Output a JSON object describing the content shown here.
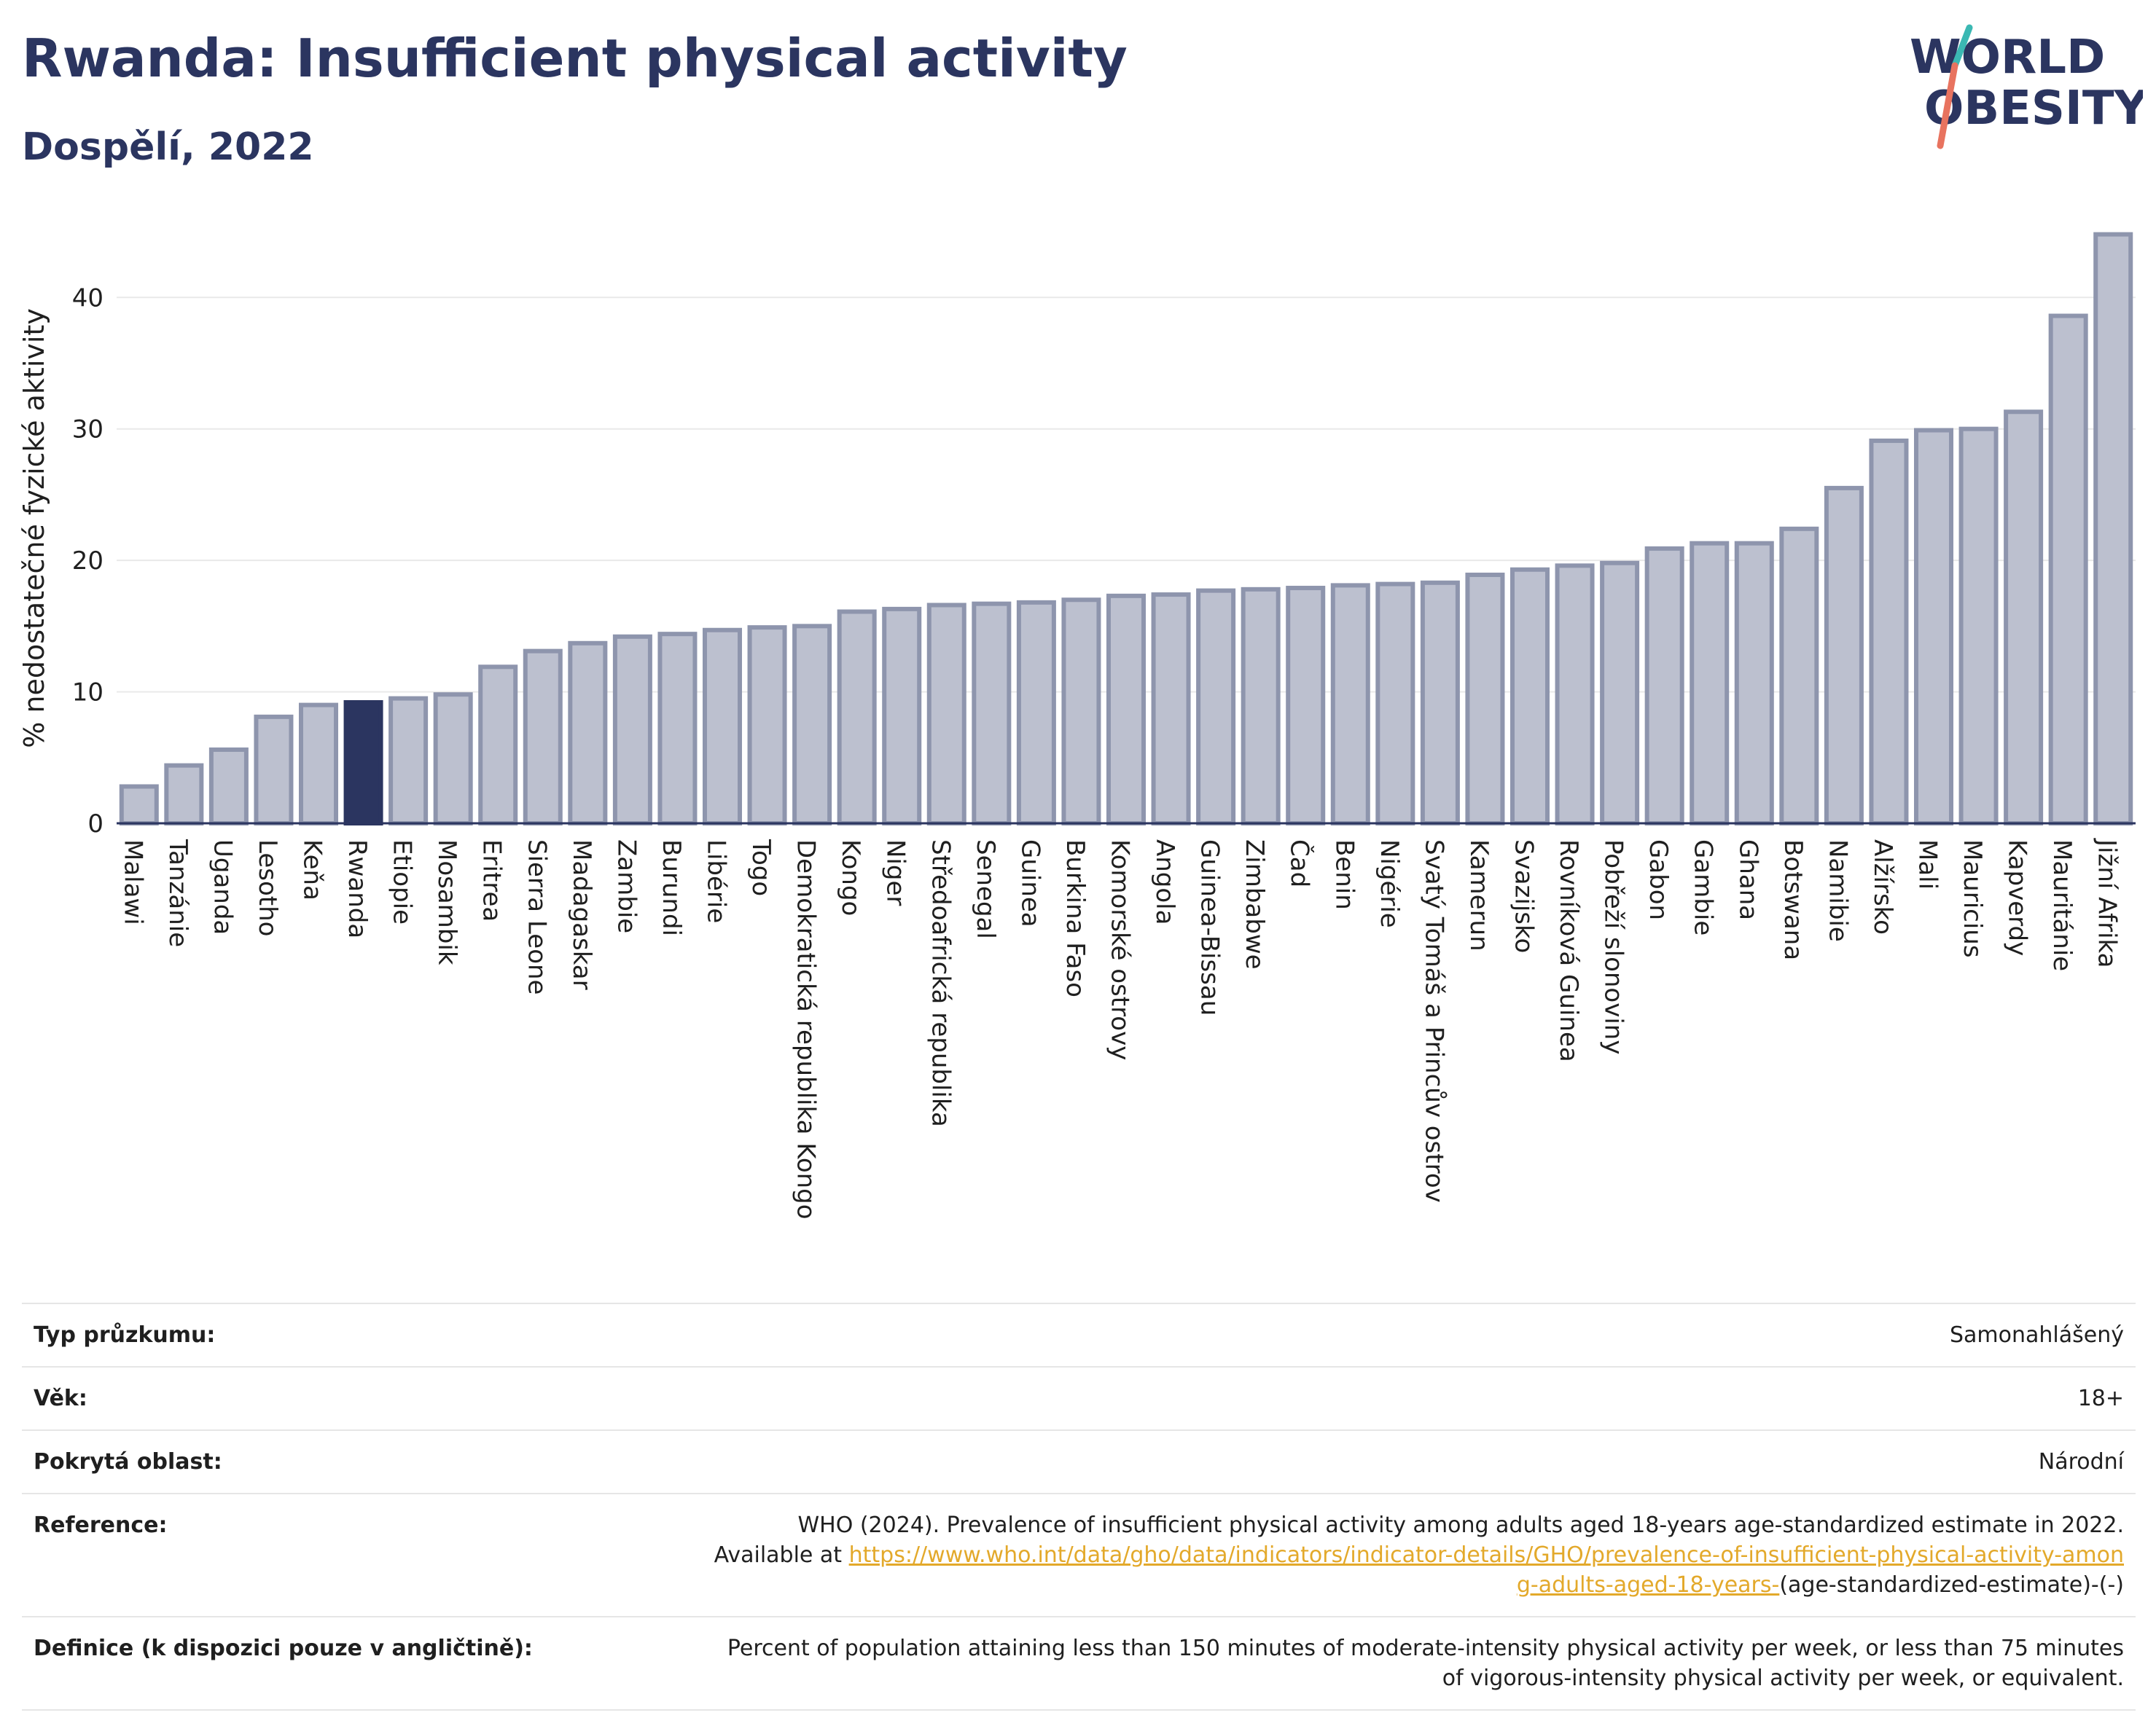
{
  "header": {
    "title": "Rwanda: Insufficient physical activity",
    "subtitle": "Dospělí, 2022"
  },
  "logo": {
    "line1": "WORLD",
    "line2": "OBESITY"
  },
  "colors": {
    "bar": "#bcc0cf",
    "bar_border": "#8e95ad",
    "highlight": "#2b3560",
    "title": "#2b3560",
    "grid": "#e9e9e9",
    "logo_slash_top": "#3bb8b3",
    "logo_slash_bottom": "#e8735f",
    "link": "#e3a92b"
  },
  "chart_data": {
    "type": "bar",
    "ylabel": "% nedostatečné fyzické aktivity",
    "xlabel": "",
    "ylim": [
      0,
      46
    ],
    "yticks": [
      0,
      10,
      20,
      30,
      40
    ],
    "grid": true,
    "highlight": "Rwanda",
    "categories": [
      "Malawi",
      "Tanzánie",
      "Uganda",
      "Lesotho",
      "Keňa",
      "Rwanda",
      "Etiopie",
      "Mosambik",
      "Eritrea",
      "Sierra Leone",
      "Madagaskar",
      "Zambie",
      "Burundi",
      "Libérie",
      "Togo",
      "Demokratická republika Kongo",
      "Kongo",
      "Niger",
      "Středoafrická republika",
      "Senegal",
      "Guinea",
      "Burkina Faso",
      "Komorské ostrovy",
      "Angola",
      "Guinea-Bissau",
      "Zimbabwe",
      "Čad",
      "Benin",
      "Nigérie",
      "Svatý Tomáš a Princův ostrov",
      "Kamerun",
      "Svazijsko",
      "Rovníková Guinea",
      "Pobřeží slonoviny",
      "Gabon",
      "Gambie",
      "Ghana",
      "Botswana",
      "Namibie",
      "Alžírsko",
      "Mali",
      "Mauricius",
      "Kapverdy",
      "Mauritánie",
      "Jižní Afrika"
    ],
    "values": [
      2.8,
      4.4,
      5.6,
      8.1,
      9.0,
      9.2,
      9.5,
      9.8,
      11.9,
      13.1,
      13.7,
      14.2,
      14.4,
      14.7,
      14.9,
      15.0,
      16.1,
      16.3,
      16.6,
      16.7,
      16.8,
      17.0,
      17.3,
      17.4,
      17.7,
      17.8,
      17.9,
      18.1,
      18.2,
      18.3,
      18.9,
      19.3,
      19.6,
      19.8,
      20.9,
      21.3,
      21.3,
      22.4,
      25.5,
      29.1,
      29.9,
      30.0,
      31.3,
      38.6,
      44.8
    ]
  },
  "info": {
    "survey_type": {
      "label": "Typ průzkumu:",
      "value": "Samonahlášený"
    },
    "age": {
      "label": "Věk:",
      "value": "18+"
    },
    "area": {
      "label": "Pokrytá oblast:",
      "value": "Národní"
    },
    "reference": {
      "label": "Reference:",
      "text_before": "WHO (2024). Prevalence of insufficient physical activity among adults aged 18-years age-standardized estimate in 2022. Available at",
      "link": "https://www.who.int/data/gho/data/indicators/indicator-details/GHO/prevalence-of-insufficient-physical-activity-among-adults-aged-18-years-",
      "text_after": "(age-standardized-estimate)-(-)"
    },
    "definition": {
      "label": "Definice (k dispozici pouze v angličtině):",
      "value": "Percent of population attaining less than 150 minutes of moderate-intensity physical activity per week, or less than 75 minutes of vigorous-intensity physical activity per week, or equivalent."
    }
  }
}
